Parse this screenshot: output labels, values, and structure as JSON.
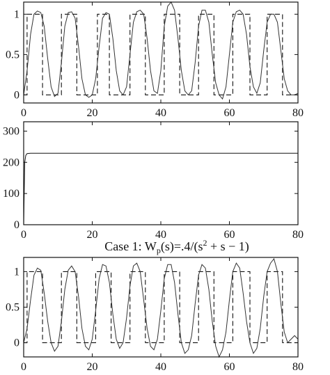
{
  "chart_data": [
    {
      "type": "line",
      "title": "",
      "xlabel": "",
      "ylabel": "",
      "xlim": [
        0,
        80
      ],
      "ylim": [
        -0.1,
        1.15
      ],
      "xticks": [
        "0",
        "20",
        "40",
        "60",
        "80"
      ],
      "yticks": [
        "0",
        "0.5",
        "1"
      ],
      "ytick_values": [
        0,
        0.5,
        1
      ],
      "grid": false,
      "series": [
        {
          "style": "dashed",
          "color": "#111111",
          "x": [
            0,
            1,
            1,
            5.5,
            5.5,
            11,
            11,
            15.5,
            15.5,
            21.5,
            21.5,
            25,
            25,
            31,
            31,
            35.5,
            35.5,
            41,
            41,
            45.5,
            45.5,
            51,
            51,
            55.5,
            55.5,
            61,
            61,
            66,
            66,
            71,
            71,
            75.5,
            75.5,
            80
          ],
          "y": [
            0,
            0,
            1,
            1,
            0,
            0,
            1,
            1,
            0,
            0,
            1,
            1,
            0,
            0,
            1,
            1,
            0,
            0,
            1,
            1,
            0,
            0,
            1,
            1,
            0,
            0,
            1,
            1,
            0,
            0,
            1,
            1,
            0,
            0
          ]
        },
        {
          "style": "solid",
          "color": "#333333",
          "x": [
            0,
            1,
            2,
            3,
            4,
            5,
            6,
            7,
            8,
            9,
            10,
            11,
            12,
            13,
            14,
            15,
            16,
            17,
            18,
            19,
            20,
            21,
            22,
            23,
            24,
            25,
            26,
            27,
            28,
            29,
            30,
            31,
            32,
            33,
            34,
            35,
            36,
            37,
            38,
            39,
            40,
            41,
            42,
            43,
            44,
            45,
            46,
            47,
            48,
            49,
            50,
            51,
            52,
            53,
            54,
            55,
            56,
            57,
            58,
            59,
            60,
            61,
            62,
            63,
            64,
            65,
            66,
            67,
            68,
            69,
            70,
            71,
            72,
            73,
            74,
            75,
            76,
            77,
            78,
            79,
            80
          ],
          "y": [
            0.0,
            0.3,
            0.75,
            1.0,
            1.04,
            1.02,
            0.85,
            0.45,
            0.1,
            -0.02,
            0.02,
            0.4,
            0.85,
            1.02,
            1.03,
            0.95,
            0.6,
            0.2,
            0.0,
            -0.03,
            0.0,
            0.2,
            0.6,
            0.95,
            1.02,
            1.0,
            0.7,
            0.3,
            0.05,
            0.0,
            0.1,
            0.5,
            0.9,
            1.03,
            1.05,
            1.0,
            0.7,
            0.3,
            0.05,
            0.02,
            0.3,
            0.85,
            1.1,
            1.15,
            1.05,
            0.7,
            0.3,
            0.05,
            0.0,
            0.05,
            0.4,
            0.85,
            1.05,
            1.05,
            0.9,
            0.5,
            0.15,
            0.0,
            -0.05,
            0.1,
            0.5,
            0.9,
            1.03,
            1.05,
            1.0,
            0.75,
            0.35,
            0.1,
            0.02,
            0.15,
            0.55,
            0.9,
            1.0,
            1.0,
            0.9,
            0.55,
            0.2,
            0.05,
            0.0,
            0.0,
            0.02
          ]
        }
      ]
    },
    {
      "type": "line",
      "title": "",
      "xlabel": "",
      "ylabel": "",
      "xlim": [
        0,
        80
      ],
      "ylim": [
        0,
        330
      ],
      "xticks": [
        "0",
        "20",
        "40",
        "60",
        "80"
      ],
      "yticks": [
        "0",
        "100",
        "200",
        "300"
      ],
      "ytick_values": [
        0,
        100,
        200,
        300
      ],
      "grid": false,
      "series": [
        {
          "style": "solid",
          "color": "#111111",
          "x": [
            0,
            0.3,
            0.6,
            1,
            2,
            10,
            20,
            40,
            60,
            80
          ],
          "y": [
            0,
            200,
            222,
            228,
            229,
            229,
            229,
            229,
            229,
            229
          ]
        }
      ]
    },
    {
      "type": "line",
      "title": "Case 1: W",
      "title_sub": "p",
      "title_mid": "(s)=.4/(s",
      "title_sup": "2",
      "title_end": " + s − 1)",
      "xlabel": "",
      "ylabel": "",
      "xlim": [
        0,
        80
      ],
      "ylim": [
        -0.2,
        1.2
      ],
      "xticks": [
        "0",
        "20",
        "40",
        "60",
        "80"
      ],
      "yticks": [
        "0",
        "0.5",
        "1"
      ],
      "ytick_values": [
        0,
        0.5,
        1
      ],
      "grid": false,
      "series": [
        {
          "style": "dashed",
          "color": "#111111",
          "x": [
            0,
            1,
            1,
            5.5,
            5.5,
            11,
            11,
            15.5,
            15.5,
            21,
            21,
            25.5,
            25.5,
            31,
            31,
            35.5,
            35.5,
            41,
            41,
            45.5,
            45.5,
            51,
            51,
            55.5,
            55.5,
            61,
            61,
            66,
            66,
            71,
            71,
            75.5,
            75.5,
            80
          ],
          "y": [
            0,
            0,
            1,
            1,
            0,
            0,
            1,
            1,
            0,
            0,
            1,
            1,
            0,
            0,
            1,
            1,
            0,
            0,
            1,
            1,
            0,
            0,
            1,
            1,
            0,
            0,
            1,
            1,
            0,
            0,
            1,
            1,
            0,
            0
          ]
        },
        {
          "style": "solid",
          "color": "#333333",
          "x": [
            0,
            1,
            2,
            3,
            4,
            5,
            6,
            7,
            8,
            9,
            10,
            11,
            12,
            13,
            14,
            15,
            16,
            17,
            18,
            19,
            20,
            21,
            22,
            23,
            24,
            25,
            26,
            27,
            28,
            29,
            30,
            31,
            32,
            33,
            34,
            35,
            36,
            37,
            38,
            39,
            40,
            41,
            42,
            43,
            44,
            45,
            46,
            47,
            48,
            49,
            50,
            51,
            52,
            53,
            54,
            55,
            56,
            57,
            58,
            59,
            60,
            61,
            62,
            63,
            64,
            65,
            66,
            67,
            68,
            69,
            70,
            71,
            72,
            73,
            74,
            75,
            76,
            77,
            78,
            79,
            80
          ],
          "y": [
            0.0,
            0.2,
            0.6,
            0.95,
            1.05,
            1.02,
            0.7,
            0.3,
            0.0,
            -0.12,
            -0.05,
            0.3,
            0.75,
            1.02,
            1.08,
            1.0,
            0.65,
            0.2,
            -0.05,
            -0.1,
            0.05,
            0.45,
            0.9,
            1.1,
            1.08,
            0.85,
            0.4,
            0.05,
            -0.08,
            0.0,
            0.35,
            0.8,
            1.08,
            1.12,
            1.0,
            0.6,
            0.2,
            -0.05,
            -0.1,
            0.05,
            0.45,
            0.9,
            1.1,
            1.1,
            0.85,
            0.4,
            0.0,
            -0.15,
            -0.1,
            0.1,
            0.55,
            0.95,
            1.1,
            1.05,
            0.75,
            0.3,
            -0.05,
            -0.2,
            -0.1,
            0.15,
            0.6,
            1.0,
            1.12,
            1.05,
            0.7,
            0.3,
            0.0,
            -0.15,
            -0.08,
            0.2,
            0.65,
            1.0,
            1.12,
            1.18,
            1.0,
            0.55,
            0.15,
            0.0,
            0.05,
            0.1,
            0.05
          ]
        }
      ]
    }
  ]
}
